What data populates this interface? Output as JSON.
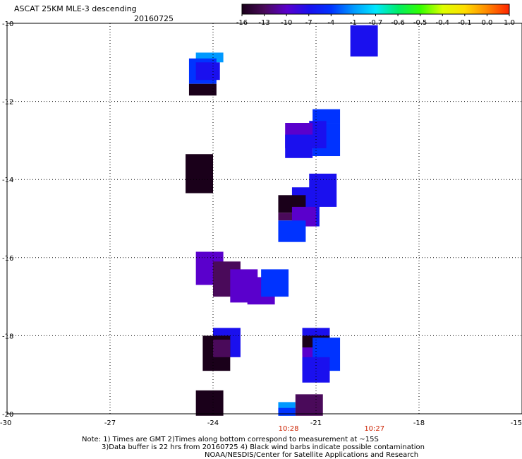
{
  "header": {
    "title": "ASCAT 25KM MLE-3 descending",
    "date": "20160725"
  },
  "colorbar": {
    "labels": [
      "-16",
      "-13",
      "-10",
      "-7",
      "-4",
      "-1",
      "-0.7",
      "-0.6",
      "-0.5",
      "-0.4",
      "-0.1",
      "0.0",
      "1.0"
    ],
    "colors": [
      "#1a001a",
      "#4a0a5a",
      "#5a00cc",
      "#1a10ee",
      "#0033ff",
      "#0099ff",
      "#00e8ff",
      "#00ee66",
      "#33ff00",
      "#ddff00",
      "#ffdd00",
      "#ff8800",
      "#ff2200"
    ]
  },
  "chart_data": {
    "type": "heatmap",
    "xlim": [
      -30,
      -15
    ],
    "ylim": [
      -20,
      -10
    ],
    "x_ticks": [
      "-30",
      "-27",
      "-24",
      "-21",
      "-18",
      "-15"
    ],
    "y_ticks": [
      "-10",
      "-12",
      "-14",
      "-16",
      "-18",
      "-20"
    ],
    "grid": true,
    "times": [
      {
        "label": "10:28",
        "x": -21.8
      },
      {
        "label": "10:27",
        "x": -19.3
      }
    ],
    "cells": [
      {
        "x0": -20.0,
        "x1": -19.2,
        "y0": -10.05,
        "y1": -10.85,
        "v": -7
      },
      {
        "x0": -24.5,
        "x1": -23.7,
        "y0": -10.75,
        "y1": -11.0,
        "v": -1
      },
      {
        "x0": -24.7,
        "x1": -23.9,
        "y0": -10.9,
        "y1": -11.55,
        "v": -4
      },
      {
        "x0": -24.5,
        "x1": -23.8,
        "y0": -11.0,
        "y1": -11.45,
        "v": -7
      },
      {
        "x0": -24.7,
        "x1": -23.9,
        "y0": -11.55,
        "y1": -11.85,
        "v": -16
      },
      {
        "x0": -21.1,
        "x1": -20.3,
        "y0": -12.2,
        "y1": -12.55,
        "v": -4
      },
      {
        "x0": -21.1,
        "x1": -20.3,
        "y0": -12.55,
        "y1": -13.4,
        "v": -4
      },
      {
        "x0": -21.2,
        "x1": -20.7,
        "y0": -12.5,
        "y1": -13.2,
        "v": -7
      },
      {
        "x0": -21.9,
        "x1": -21.1,
        "y0": -12.55,
        "y1": -13.2,
        "v": -10
      },
      {
        "x0": -21.9,
        "x1": -21.1,
        "y0": -12.85,
        "y1": -13.45,
        "v": -7
      },
      {
        "x0": -24.8,
        "x1": -24.0,
        "y0": -13.35,
        "y1": -14.35,
        "v": -16
      },
      {
        "x0": -21.2,
        "x1": -20.4,
        "y0": -13.85,
        "y1": -14.7,
        "v": -7
      },
      {
        "x0": -21.7,
        "x1": -20.9,
        "y0": -14.2,
        "y1": -15.2,
        "v": -7
      },
      {
        "x0": -22.1,
        "x1": -21.3,
        "y0": -14.4,
        "y1": -14.85,
        "v": -16
      },
      {
        "x0": -22.1,
        "x1": -21.4,
        "y0": -14.85,
        "y1": -15.05,
        "v": -13
      },
      {
        "x0": -21.7,
        "x1": -21.0,
        "y0": -14.7,
        "y1": -15.2,
        "v": -10
      },
      {
        "x0": -22.1,
        "x1": -21.3,
        "y0": -15.05,
        "y1": -15.6,
        "v": -4
      },
      {
        "x0": -24.5,
        "x1": -23.7,
        "y0": -15.85,
        "y1": -16.7,
        "v": -10
      },
      {
        "x0": -24.0,
        "x1": -23.2,
        "y0": -16.1,
        "y1": -17.0,
        "v": -13
      },
      {
        "x0": -23.5,
        "x1": -22.7,
        "y0": -16.3,
        "y1": -17.15,
        "v": -10
      },
      {
        "x0": -23.0,
        "x1": -22.2,
        "y0": -16.5,
        "y1": -17.2,
        "v": -10
      },
      {
        "x0": -22.6,
        "x1": -21.8,
        "y0": -16.3,
        "y1": -17.0,
        "v": -4
      },
      {
        "x0": -24.0,
        "x1": -23.2,
        "y0": -17.8,
        "y1": -18.55,
        "v": -7
      },
      {
        "x0": -24.3,
        "x1": -23.5,
        "y0": -18.0,
        "y1": -18.9,
        "v": -16
      },
      {
        "x0": -24.0,
        "x1": -23.5,
        "y0": -18.1,
        "y1": -18.55,
        "v": -13
      },
      {
        "x0": -21.4,
        "x1": -20.6,
        "y0": -17.8,
        "y1": -18.5,
        "v": -7
      },
      {
        "x0": -21.4,
        "x1": -20.6,
        "y0": -18.0,
        "y1": -18.9,
        "v": -10
      },
      {
        "x0": -21.4,
        "x1": -20.6,
        "y0": -18.0,
        "y1": -18.3,
        "v": -16
      },
      {
        "x0": -21.1,
        "x1": -20.3,
        "y0": -18.05,
        "y1": -18.9,
        "v": -4
      },
      {
        "x0": -21.4,
        "x1": -20.6,
        "y0": -18.55,
        "y1": -19.2,
        "v": -7
      },
      {
        "x0": -24.5,
        "x1": -23.7,
        "y0": -19.4,
        "y1": -20.05,
        "v": -16
      },
      {
        "x0": -22.1,
        "x1": -21.6,
        "y0": -19.7,
        "y1": -20.05,
        "v": -1
      },
      {
        "x0": -22.1,
        "x1": -21.6,
        "y0": -19.85,
        "y1": -20.05,
        "v": -4
      },
      {
        "x0": -21.6,
        "x1": -20.8,
        "y0": -19.5,
        "y1": -20.05,
        "v": -13
      }
    ]
  },
  "footer": {
    "line1": "Note: 1) Times are GMT 2)Times along bottom correspond to measurement at ~15S",
    "line2": "3)Data buffer is 22 hrs from 20160725 4) Black wind barbs indicate possible contamination",
    "line3": "NOAA/NESDIS/Center for Satellite Applications and Research"
  }
}
